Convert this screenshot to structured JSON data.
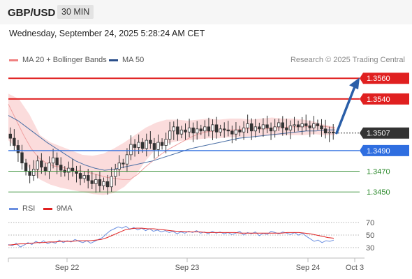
{
  "header": {
    "symbol": "GBP/USD",
    "timeframe": "30 MIN"
  },
  "datetime": "Wednesday, September 24, 2025 5:28:24 AM CET",
  "credit": "Research © 2025 Trading Central",
  "colors": {
    "resistance": "#e02020",
    "support": "#2f6ee0",
    "minor_support": "#2e8b2e",
    "current": "#333333",
    "bollinger_fill": "#fbdcdc",
    "ma20": "#f0a0a0",
    "ma50": "#4a6fa5",
    "candle": "#333333",
    "arrow": "#2a5ea8",
    "rsi": "#6b8fe0",
    "rsi_ma": "#e02020"
  },
  "chart_data": [
    {
      "type": "candlestick",
      "title": "GBP/USD",
      "timeframe": "30 MIN",
      "x_tick_labels": [
        "Sep 22",
        "Sep 23",
        "Sep 24",
        "Oct 3"
      ],
      "legend": [
        {
          "name": "MA 20 + Bollinger Bands",
          "color": "#f08080"
        },
        {
          "name": "MA 50",
          "color": "#2a4e8a"
        }
      ],
      "legend_position": "top-left",
      "ylim": [
        1.344,
        1.3575
      ],
      "current_price": {
        "label": "1.3507",
        "value": 1.3507
      },
      "levels": [
        {
          "label": "1.3560",
          "value": 1.356,
          "kind": "resistance",
          "color": "#e02020",
          "label_style": "filled"
        },
        {
          "label": "1.3540",
          "value": 1.354,
          "kind": "resistance",
          "color": "#e02020",
          "label_style": "filled"
        },
        {
          "label": "1.3490",
          "value": 1.349,
          "kind": "support",
          "color": "#2f6ee0",
          "label_style": "filled"
        },
        {
          "label": "1.3470",
          "value": 1.347,
          "kind": "support",
          "color": "#2e8b2e",
          "label_style": "text"
        },
        {
          "label": "1.3450",
          "value": 1.345,
          "kind": "support",
          "color": "#2e8b2e",
          "label_style": "text"
        }
      ],
      "forecast_arrow": {
        "from": 1.3507,
        "to": 1.356
      },
      "price_path": [
        1.3506,
        1.3502,
        1.3495,
        1.3488,
        1.3478,
        1.347,
        1.3466,
        1.3472,
        1.348,
        1.3474,
        1.347,
        1.3478,
        1.3483,
        1.3476,
        1.3471,
        1.3469,
        1.3473,
        1.347,
        1.3468,
        1.3463,
        1.3466,
        1.3461,
        1.3458,
        1.3462,
        1.3456,
        1.346,
        1.3455,
        1.3465,
        1.3472,
        1.3478,
        1.3477,
        1.3486,
        1.3496,
        1.3493,
        1.3498,
        1.3492,
        1.35,
        1.3497,
        1.3491,
        1.3498,
        1.3495,
        1.3501,
        1.3509,
        1.3513,
        1.3506,
        1.351,
        1.3508,
        1.3512,
        1.3507,
        1.3511,
        1.3509,
        1.3513,
        1.3509,
        1.3515,
        1.3508,
        1.3511,
        1.351,
        1.3509,
        1.3506,
        1.351,
        1.3508,
        1.3512,
        1.3516,
        1.3509,
        1.3513,
        1.3511,
        1.3515,
        1.3512,
        1.3509,
        1.3513,
        1.3517,
        1.3512,
        1.351,
        1.3514,
        1.3515,
        1.3513,
        1.3516,
        1.3514,
        1.3512,
        1.3516,
        1.3514,
        1.3511,
        1.3507,
        1.3508,
        1.3507
      ],
      "ma20_path": [
        1.3535,
        1.352,
        1.3505,
        1.3492,
        1.3483,
        1.3478,
        1.3475,
        1.3474,
        1.3472,
        1.3471,
        1.347,
        1.3468,
        1.3466,
        1.3464,
        1.3463,
        1.3462,
        1.3462,
        1.3467,
        1.3474,
        1.348,
        1.3486,
        1.3491,
        1.3495,
        1.3499,
        1.3503,
        1.3506,
        1.3508,
        1.3509,
        1.351,
        1.351,
        1.351,
        1.3511,
        1.3511,
        1.3511,
        1.3511,
        1.3512,
        1.3512,
        1.3513,
        1.3513,
        1.3513,
        1.3514,
        1.3514,
        1.3513,
        1.3512
      ],
      "ma50_path": [
        1.3524,
        1.3519,
        1.3512,
        1.3505,
        1.3498,
        1.3492,
        1.3486,
        1.348,
        1.3476,
        1.3473,
        1.3471,
        1.3472,
        1.3474,
        1.3476,
        1.3478,
        1.348,
        1.3483,
        1.3486,
        1.3489,
        1.3492,
        1.3494,
        1.3496,
        1.3498,
        1.35,
        1.3502,
        1.3503,
        1.3504,
        1.3505,
        1.3506,
        1.3507,
        1.3508,
        1.3509,
        1.3509,
        1.351,
        1.351
      ],
      "bb_upper_path": [
        1.3545,
        1.354,
        1.3525,
        1.3505,
        1.3498,
        1.3494,
        1.349,
        1.3486,
        1.3485,
        1.3487,
        1.3492,
        1.3498,
        1.3505,
        1.3512,
        1.3517,
        1.352,
        1.352,
        1.3519,
        1.352,
        1.3521,
        1.352,
        1.3521,
        1.3521,
        1.352,
        1.3521,
        1.3522,
        1.3521,
        1.3521,
        1.352,
        1.3518,
        1.3515,
        1.3513
      ],
      "bb_lower_path": [
        1.35,
        1.349,
        1.3472,
        1.3462,
        1.3457,
        1.3454,
        1.3452,
        1.345,
        1.3448,
        1.3447,
        1.3449,
        1.3455,
        1.3465,
        1.348,
        1.3492,
        1.3497,
        1.3499,
        1.35,
        1.3501,
        1.3502,
        1.3502,
        1.3503,
        1.3503,
        1.3504,
        1.3504,
        1.3505,
        1.3505,
        1.3505,
        1.3505,
        1.3506,
        1.3505,
        1.3505
      ]
    },
    {
      "type": "line",
      "title": "RSI",
      "legend": [
        {
          "name": "RSI",
          "color": "#6b8fe0"
        },
        {
          "name": "9MA",
          "color": "#e02020"
        }
      ],
      "legend_position": "top-left",
      "ylim": [
        20,
        80
      ],
      "y_tick_labels": [
        "70",
        "50",
        "30"
      ],
      "y_ticks": [
        70,
        50,
        30
      ],
      "rsi": [
        35,
        33,
        37,
        31,
        34,
        38,
        35,
        40,
        37,
        41,
        36,
        39,
        37,
        42,
        38,
        41,
        39,
        43,
        40,
        38,
        41,
        37,
        40,
        43,
        46,
        52,
        57,
        60,
        63,
        61,
        64,
        59,
        62,
        58,
        61,
        57,
        60,
        56,
        58,
        55,
        57,
        54,
        56,
        52,
        55,
        53,
        56,
        54,
        57,
        53,
        55,
        52,
        56,
        53,
        55,
        52,
        54,
        51,
        53,
        56,
        50,
        54,
        52,
        55,
        49,
        53,
        51,
        56,
        54,
        52,
        55,
        53,
        51,
        54,
        50,
        53,
        48,
        44,
        40,
        42,
        38,
        41,
        40,
        42
      ],
      "rsi_ma": [
        34,
        35,
        36,
        36,
        37,
        38,
        38,
        39,
        39,
        40,
        40,
        40,
        41,
        41,
        41,
        42,
        43,
        46,
        50,
        54,
        58,
        60,
        61,
        61,
        60,
        60,
        59,
        58,
        57,
        56,
        56,
        55,
        55,
        55,
        54,
        54,
        54,
        54,
        54,
        54,
        53,
        53,
        53,
        53,
        53,
        53,
        53,
        53,
        54,
        54,
        54,
        53,
        52,
        50,
        48,
        46,
        45
      ]
    }
  ]
}
